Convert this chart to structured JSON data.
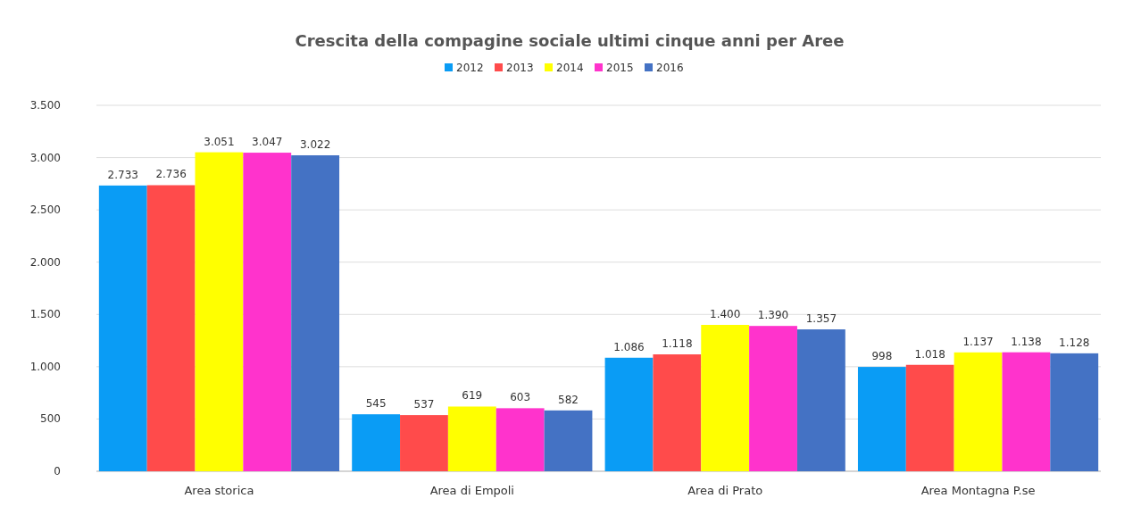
{
  "chart_data": {
    "type": "bar",
    "title": "Crescita della compagine sociale ultimi cinque anni per Aree",
    "categories": [
      "Area storica",
      "Area di Empoli",
      "Area di Prato",
      "Area Montagna P.se"
    ],
    "series": [
      {
        "name": "2012",
        "color": "#0a9cf5",
        "values": [
          2733,
          545,
          1086,
          998
        ],
        "value_labels": [
          "2.733",
          "545",
          "1.086",
          "998"
        ]
      },
      {
        "name": "2013",
        "color": "#ff4b4b",
        "values": [
          2736,
          537,
          1118,
          1018
        ],
        "value_labels": [
          "2.736",
          "537",
          "1.118",
          "1.018"
        ]
      },
      {
        "name": "2014",
        "color": "#ffff00",
        "values": [
          3051,
          619,
          1400,
          1137
        ],
        "value_labels": [
          "3.051",
          "619",
          "1.400",
          "1.137"
        ]
      },
      {
        "name": "2015",
        "color": "#ff33cc",
        "values": [
          3047,
          603,
          1390,
          1138
        ],
        "value_labels": [
          "3.047",
          "603",
          "1.390",
          "1.138"
        ]
      },
      {
        "name": "2016",
        "color": "#4472c4",
        "values": [
          3022,
          582,
          1357,
          1128
        ],
        "value_labels": [
          "3.022",
          "582",
          "1.357",
          "1.128"
        ]
      }
    ],
    "ylim": [
      0,
      3500
    ],
    "yticks": [
      0,
      {
        "value": 500,
        "label": "500"
      },
      {
        "value": 1000,
        "label": "1.000"
      },
      {
        "value": 1500,
        "label": "1.500"
      },
      {
        "value": 2000,
        "label": "2.000"
      },
      {
        "value": 2500,
        "label": "2.500"
      },
      {
        "value": 3000,
        "label": "3.000"
      },
      {
        "value": 3500,
        "label": "3.500"
      }
    ],
    "grid": "y",
    "legend": "top"
  }
}
